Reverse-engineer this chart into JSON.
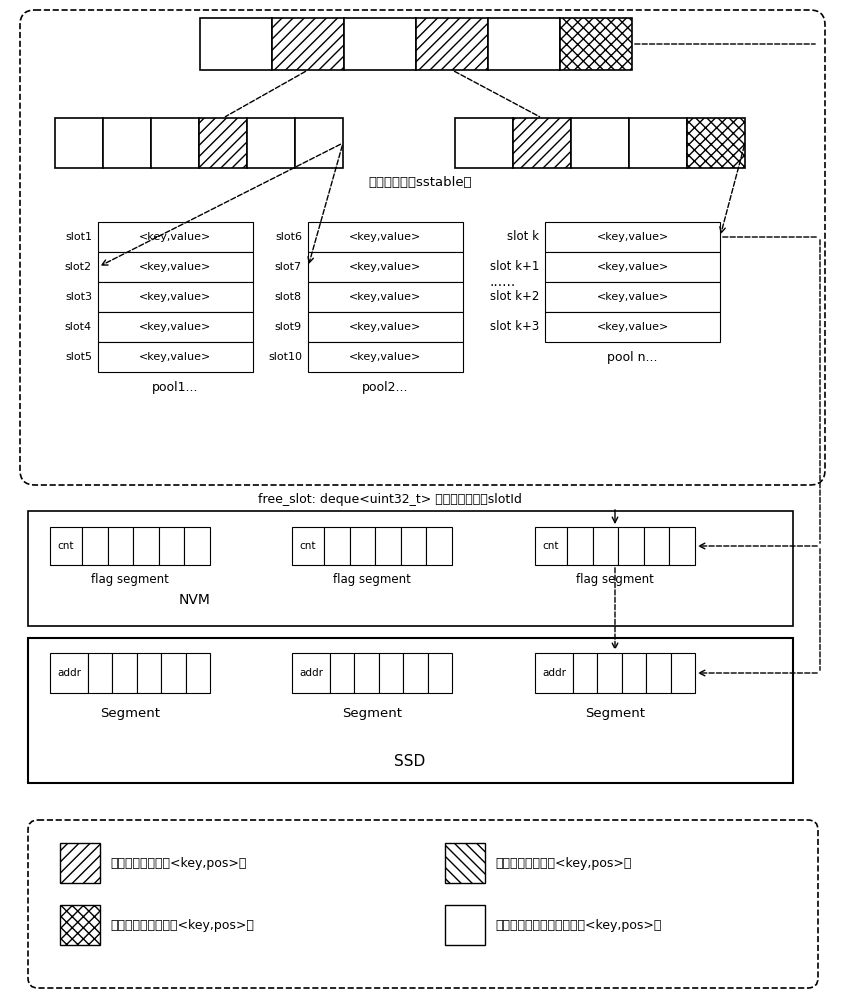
{
  "bg_color": "#ffffff",
  "sstable_label": "合并时选中的sstable表",
  "pool1_label": "pool1...",
  "pool2_label": "pool2...",
  "pooln_label": "pool n...",
  "nvm_label": "NVM",
  "ssd_label": "SSD",
  "free_slot_text": "free_slot: deque<uint32_t> 用来保存空闲的slotId",
  "slot_labels_pool1": [
    "slot1",
    "slot2",
    "slot3",
    "slot4",
    "slot5"
  ],
  "slot_labels_pool2": [
    "slot6",
    "slot7",
    "slot8",
    "slot9",
    "slot10"
  ],
  "slot_labels_pooln": [
    "slot k",
    "slot k+1",
    "slot k+2",
    "slot k+3"
  ],
  "kv_text": "<key,value>",
  "dots_text": "......",
  "legend_labels": [
    "合并时更新后的新<key,pos>对",
    "合并时更新前的旧<key,pos>对",
    "合并时已经被删除的<key,pos>对",
    "合并操作时没有更新和删除<key,pos>对"
  ]
}
